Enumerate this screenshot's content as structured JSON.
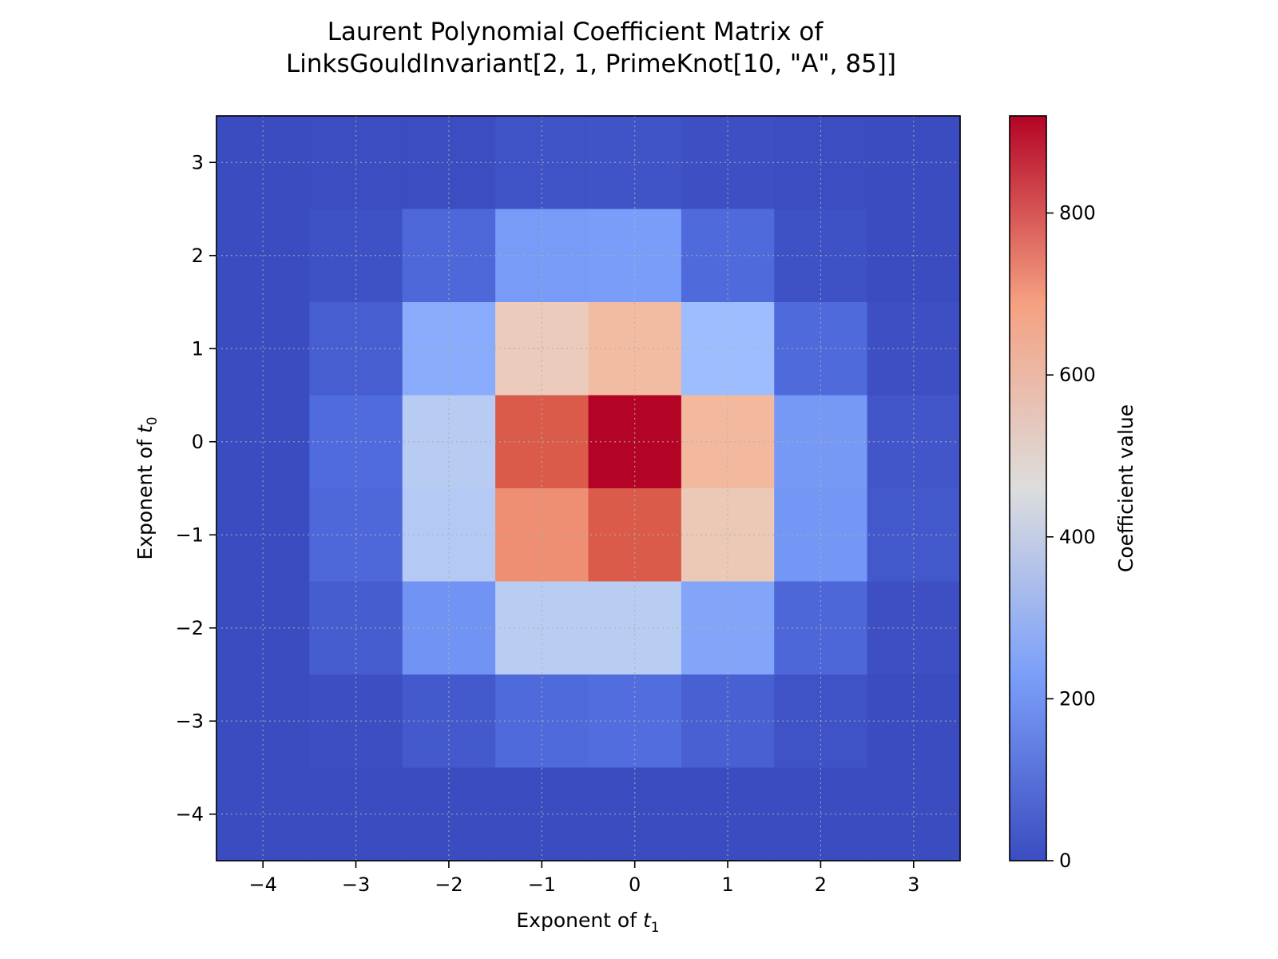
{
  "chart_data": {
    "type": "heatmap",
    "title_lines": [
      "Laurent Polynomial Coefficient Matrix of",
      "LinksGouldInvariant[2, 1, PrimeKnot[10, \"A\", 85]]"
    ],
    "xlabel": "Exponent of t1",
    "ylabel": "Exponent of t0",
    "xlabel_main": "Exponent of ",
    "xlabel_var": "t",
    "xlabel_sub": "1",
    "ylabel_main": "Exponent of ",
    "ylabel_var": "t",
    "ylabel_sub": "0",
    "x_exponents": [
      -4,
      -3,
      -2,
      -1,
      0,
      1,
      2,
      3
    ],
    "y_exponents": [
      3,
      2,
      1,
      0,
      -1,
      -2,
      -3,
      -4
    ],
    "x_tick_labels": [
      "−4",
      "−3",
      "−2",
      "−1",
      "0",
      "1",
      "2",
      "3"
    ],
    "y_tick_labels": [
      "3",
      "2",
      "1",
      "0",
      "−1",
      "−2",
      "−3",
      "−4"
    ],
    "values": [
      [
        0,
        2,
        4,
        20,
        24,
        10,
        2,
        0
      ],
      [
        0,
        18,
        85,
        220,
        225,
        90,
        15,
        0
      ],
      [
        0,
        55,
        270,
        530,
        590,
        330,
        90,
        10
      ],
      [
        0,
        95,
        385,
        810,
        920,
        600,
        215,
        30
      ],
      [
        0,
        85,
        380,
        720,
        810,
        540,
        210,
        35
      ],
      [
        0,
        50,
        200,
        390,
        390,
        250,
        80,
        10
      ],
      [
        0,
        5,
        40,
        90,
        100,
        60,
        20,
        0
      ],
      [
        0,
        0,
        0,
        0,
        0,
        0,
        0,
        0
      ]
    ],
    "colormap": "coolwarm",
    "vmin": 0,
    "vmax": 920,
    "colorbar_label": "Coefficient value",
    "colorbar_ticks": [
      0,
      200,
      400,
      600,
      800
    ],
    "colorbar_tick_labels": [
      "0",
      "200",
      "400",
      "600",
      "800"
    ],
    "grid": true
  }
}
